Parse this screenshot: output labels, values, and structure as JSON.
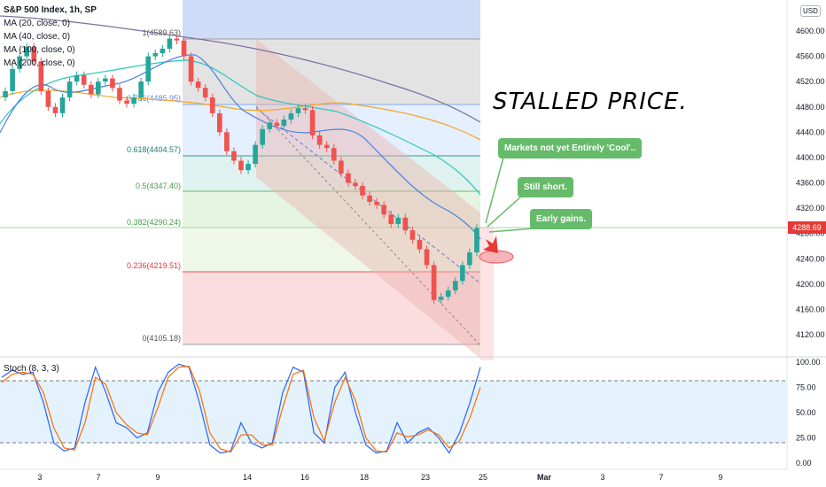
{
  "header": {
    "symbol_title": "S&P 500 Index, 1h, SP",
    "ma_labels": [
      "MA (20, close, 0)",
      "MA (40, close, 0)",
      "MA (100, close, 0)",
      "MA (200, close, 0)"
    ],
    "currency_badge": "USD",
    "current_price_tag": "4288.69"
  },
  "annotations": {
    "headline": "STALLED PRICE.",
    "callout_1": "Markets not yet Entirely 'Cool'..",
    "callout_2": "Still short.",
    "callout_3": "Early gains."
  },
  "colors": {
    "bull": "#26a69a",
    "bear": "#ef5350",
    "ma20": "#4a7fe0",
    "ma40": "#2ec6c0",
    "ma100": "#f5a623",
    "ma200": "#7b6fa0",
    "stoch_k": "#2962ff",
    "stoch_d": "#ff6d00",
    "callout": "#66bb6a",
    "arrow": "#e53935"
  },
  "chart_data": [
    {
      "type": "candlestick",
      "title": "S&P 500 Index, 1h, SP",
      "ylim": [
        4100,
        4630
      ],
      "y_ticks": [
        "4120.00",
        "4160.00",
        "4200.00",
        "4240.00",
        "4280.00",
        "4320.00",
        "4360.00",
        "4400.00",
        "4440.00",
        "4480.00",
        "4520.00",
        "4560.00",
        "4600.00"
      ],
      "x_ticks": [
        "3",
        "7",
        "9",
        "14",
        "16",
        "18",
        "23",
        "25",
        "Mar",
        "3",
        "7",
        "9"
      ],
      "fib_levels": [
        {
          "label": "1(4589.63)",
          "value": 4589.63
        },
        {
          "label": "0.786(4485.95)",
          "value": 4485.95
        },
        {
          "label": "0.618(4404.57)",
          "value": 4404.57
        },
        {
          "label": "0.5(4347.40)",
          "value": 4347.4
        },
        {
          "label": "0.382(4290.24)",
          "value": 4290.24
        },
        {
          "label": "0.236(4219.51)",
          "value": 4219.51
        },
        {
          "label": "0(4105.18)",
          "value": 4105.18
        }
      ],
      "close_series": [
        4505,
        4540,
        4560,
        4575,
        4552,
        4505,
        4480,
        4470,
        4495,
        4520,
        4530,
        4515,
        4500,
        4520,
        4525,
        4510,
        4490,
        4485,
        4495,
        4520,
        4560,
        4565,
        4572,
        4588,
        4585,
        4560,
        4520,
        4510,
        4495,
        4470,
        4440,
        4410,
        4395,
        4380,
        4390,
        4420,
        4445,
        4455,
        4450,
        4460,
        4470,
        4478,
        4475,
        4435,
        4420,
        4415,
        4395,
        4375,
        4360,
        4355,
        4340,
        4330,
        4325,
        4310,
        4295,
        4305,
        4285,
        4270,
        4255,
        4230,
        4175,
        4180,
        4190,
        4205,
        4230,
        4250,
        4288.69
      ],
      "current_price": 4288.69
    },
    {
      "type": "line",
      "title": "Stoch (8, 3, 3)",
      "ylim": [
        0,
        100
      ],
      "y_ticks": [
        "0.00",
        "25.00",
        "50.00",
        "75.00",
        "100.00"
      ],
      "bands": [
        20,
        80
      ],
      "series": [
        {
          "name": "%K",
          "values": [
            85,
            92,
            88,
            90,
            60,
            20,
            12,
            15,
            60,
            95,
            70,
            40,
            35,
            25,
            30,
            70,
            90,
            98,
            95,
            60,
            18,
            10,
            12,
            40,
            20,
            15,
            20,
            70,
            95,
            90,
            30,
            20,
            75,
            90,
            50,
            18,
            10,
            12,
            40,
            20,
            30,
            35,
            25,
            10,
            30,
            60,
            95
          ]
        },
        {
          "name": "%D",
          "values": [
            80,
            88,
            90,
            88,
            70,
            35,
            15,
            13,
            40,
            85,
            78,
            50,
            38,
            30,
            28,
            55,
            85,
            95,
            96,
            72,
            30,
            14,
            11,
            28,
            28,
            18,
            18,
            55,
            88,
            92,
            45,
            22,
            60,
            85,
            62,
            25,
            12,
            11,
            30,
            26,
            28,
            33,
            28,
            15,
            22,
            45,
            75
          ]
        }
      ]
    }
  ]
}
